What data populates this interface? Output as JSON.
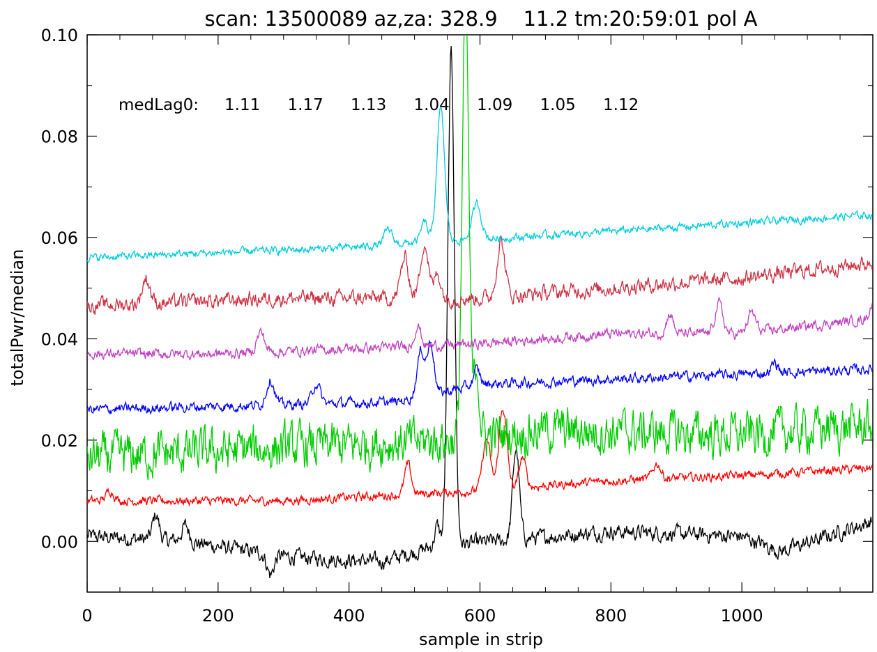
{
  "chart_data": {
    "type": "line",
    "title": "scan: 13500089 az,za: 328.9    11.2 tm:20:59:01 pol A",
    "xlabel": "sample in strip",
    "ylabel": "totalPwr/median",
    "xlim": [
      0,
      1200
    ],
    "ylim": [
      -0.01,
      0.1
    ],
    "x_ticks": [
      0,
      200,
      400,
      600,
      800,
      1000
    ],
    "x_tick_labels": [
      "0",
      "200",
      "400",
      "600",
      "800",
      "1000"
    ],
    "y_ticks": [
      0.0,
      0.02,
      0.04,
      0.06,
      0.08,
      0.1
    ],
    "y_tick_labels": [
      "0.00",
      "0.02",
      "0.04",
      "0.06",
      "0.08",
      "0.10"
    ],
    "annotation": {
      "label": "medLag0:",
      "values": [
        "1.11",
        "1.17",
        "1.13",
        "1.04",
        "1.09",
        "1.05",
        "1.12"
      ]
    },
    "series": [
      {
        "color": "#000000",
        "baseline": 0.0,
        "noise": 0.0012,
        "trend": [
          [
            0,
            0.001
          ],
          [
            150,
            0.0
          ],
          [
            300,
            -0.003
          ],
          [
            450,
            -0.004
          ],
          [
            530,
            -0.001
          ],
          [
            800,
            0.002
          ],
          [
            1000,
            0.001
          ],
          [
            1060,
            -0.002
          ],
          [
            1200,
            0.004
          ]
        ],
        "peaks": [
          [
            105,
            0.005,
            5
          ],
          [
            150,
            0.003,
            6
          ],
          [
            280,
            -0.004,
            5
          ],
          [
            535,
            0.004,
            4
          ],
          [
            556,
            0.097,
            5
          ],
          [
            655,
            0.018,
            5
          ]
        ]
      },
      {
        "color": "#ff0000",
        "baseline": 0.008,
        "noise": 0.0007,
        "trend": [
          [
            0,
            0.008
          ],
          [
            300,
            0.008
          ],
          [
            450,
            0.009
          ],
          [
            600,
            0.01
          ],
          [
            800,
            0.012
          ],
          [
            1000,
            0.013
          ],
          [
            1200,
            0.0145
          ]
        ],
        "peaks": [
          [
            35,
            0.002,
            6
          ],
          [
            490,
            0.006,
            5
          ],
          [
            610,
            0.01,
            6
          ],
          [
            635,
            0.016,
            6
          ],
          [
            665,
            0.006,
            5
          ],
          [
            870,
            0.003,
            6
          ]
        ]
      },
      {
        "color": "#00cc00",
        "baseline": 0.0165,
        "noise": 0.0035,
        "trend": [
          [
            0,
            0.0165
          ],
          [
            550,
            0.02
          ],
          [
            700,
            0.022
          ],
          [
            1000,
            0.021
          ],
          [
            1200,
            0.023
          ]
        ],
        "peaks": [
          [
            578,
            0.085,
            5
          ],
          [
            595,
            0.014,
            4
          ]
        ]
      },
      {
        "color": "#0000ff",
        "baseline": 0.026,
        "noise": 0.0008,
        "trend": [
          [
            0,
            0.026
          ],
          [
            300,
            0.027
          ],
          [
            470,
            0.0275
          ],
          [
            600,
            0.031
          ],
          [
            800,
            0.032
          ],
          [
            1000,
            0.033
          ],
          [
            1200,
            0.034
          ]
        ],
        "peaks": [
          [
            280,
            0.005,
            6
          ],
          [
            350,
            0.004,
            6
          ],
          [
            510,
            0.009,
            6
          ],
          [
            525,
            0.01,
            5
          ],
          [
            595,
            0.003,
            5
          ],
          [
            1050,
            0.002,
            5
          ]
        ]
      },
      {
        "color": "#c040c0",
        "baseline": 0.037,
        "noise": 0.0008,
        "trend": [
          [
            0,
            0.037
          ],
          [
            200,
            0.037
          ],
          [
            400,
            0.038
          ],
          [
            600,
            0.039
          ],
          [
            800,
            0.041
          ],
          [
            1000,
            0.041
          ],
          [
            1200,
            0.044
          ]
        ],
        "peaks": [
          [
            265,
            0.004,
            6
          ],
          [
            505,
            0.004,
            5
          ],
          [
            890,
            0.004,
            5
          ],
          [
            965,
            0.006,
            6
          ],
          [
            1015,
            0.004,
            6
          ],
          [
            1200,
            0.003,
            5
          ]
        ]
      },
      {
        "color": "#cc3344",
        "baseline": 0.0465,
        "noise": 0.0012,
        "trend": [
          [
            0,
            0.0465
          ],
          [
            300,
            0.048
          ],
          [
            450,
            0.048
          ],
          [
            600,
            0.048
          ],
          [
            800,
            0.05
          ],
          [
            1000,
            0.052
          ],
          [
            1200,
            0.055
          ]
        ],
        "peaks": [
          [
            90,
            0.005,
            6
          ],
          [
            485,
            0.008,
            6
          ],
          [
            515,
            0.011,
            6
          ],
          [
            535,
            0.005,
            5
          ],
          [
            632,
            0.011,
            6
          ]
        ]
      },
      {
        "color": "#00ccdd",
        "baseline": 0.056,
        "noise": 0.0006,
        "trend": [
          [
            0,
            0.056
          ],
          [
            200,
            0.057
          ],
          [
            400,
            0.058
          ],
          [
            500,
            0.059
          ],
          [
            650,
            0.06
          ],
          [
            900,
            0.062
          ],
          [
            1200,
            0.0645
          ]
        ],
        "peaks": [
          [
            460,
            0.003,
            6
          ],
          [
            515,
            0.004,
            5
          ],
          [
            540,
            0.026,
            6
          ],
          [
            595,
            0.007,
            7
          ]
        ]
      }
    ]
  }
}
